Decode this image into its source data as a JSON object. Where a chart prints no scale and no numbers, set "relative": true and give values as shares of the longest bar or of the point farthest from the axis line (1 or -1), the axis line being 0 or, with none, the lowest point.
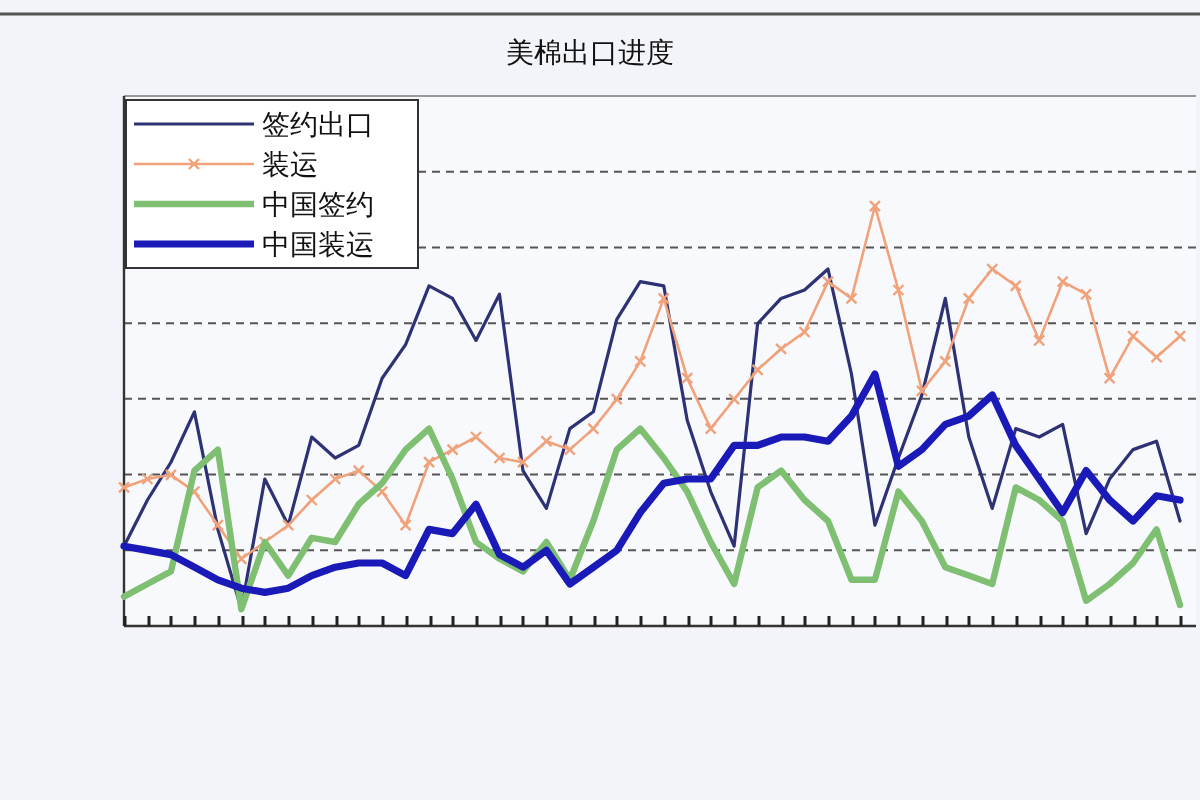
{
  "chart_data": {
    "type": "line",
    "title": "美棉出口进度",
    "relative": true,
    "grid": "y",
    "legend": "top left",
    "categories": [
      null,
      null,
      null,
      null,
      null,
      null,
      null,
      null,
      null,
      null,
      null,
      null,
      null,
      null,
      null,
      null,
      null,
      null,
      null,
      null,
      null,
      null,
      null,
      null,
      null,
      null,
      null,
      null,
      null,
      null,
      null,
      null,
      null,
      null,
      null,
      null,
      null,
      null,
      null,
      null,
      null,
      null,
      null,
      null,
      null,
      null
    ],
    "series": [
      {
        "name": "签约出口",
        "color": "#2e3275",
        "values": [
          0.19,
          0.3,
          0.39,
          0.51,
          0.23,
          0.04,
          0.35,
          0.24,
          0.45,
          0.4,
          0.43,
          0.59,
          0.67,
          0.81,
          0.78,
          0.68,
          0.79,
          0.37,
          0.28,
          0.47,
          0.51,
          0.73,
          0.82,
          0.81,
          0.49,
          0.32,
          0.19,
          0.72,
          0.78,
          0.8,
          0.85,
          0.6,
          0.24,
          0.4,
          0.55,
          0.78,
          0.45,
          0.28,
          0.47,
          0.45,
          0.48,
          0.22,
          0.35,
          0.42,
          0.44,
          0.25
        ]
      },
      {
        "name": "装运",
        "color": "#f0a27a",
        "marker": "cross",
        "values": [
          0.33,
          0.35,
          0.36,
          0.32,
          0.24,
          0.16,
          0.2,
          0.24,
          0.3,
          0.35,
          0.37,
          0.32,
          0.24,
          0.39,
          0.42,
          0.45,
          0.4,
          0.39,
          0.44,
          0.42,
          0.47,
          0.54,
          0.63,
          0.78,
          0.59,
          0.47,
          0.54,
          0.61,
          0.66,
          0.7,
          0.82,
          0.78,
          1,
          0.8,
          0.56,
          0.63,
          0.78,
          0.85,
          0.81,
          0.68,
          0.82,
          0.79,
          0.59,
          0.69,
          0.64,
          0.69
        ]
      },
      {
        "name": "中国签约",
        "color": "#7fbf72",
        "values": [
          0.07,
          0.1,
          0.13,
          0.37,
          0.42,
          0.04,
          0.2,
          0.12,
          0.21,
          0.2,
          0.29,
          0.34,
          0.42,
          0.47,
          0.35,
          0.2,
          0.16,
          0.13,
          0.2,
          0.11,
          0.25,
          0.42,
          0.47,
          0.4,
          0.32,
          0.2,
          0.1,
          0.33,
          0.37,
          0.3,
          0.25,
          0.11,
          0.11,
          0.32,
          0.25,
          0.14,
          0.12,
          0.1,
          0.33,
          0.3,
          0.25,
          0.06,
          0.1,
          0.15,
          0.23,
          0.05
        ]
      },
      {
        "name": "中国装运",
        "color": "#1a1ab8",
        "values": [
          0.19,
          0.18,
          0.17,
          0.14,
          0.11,
          0.09,
          0.08,
          0.09,
          0.12,
          0.14,
          0.15,
          0.15,
          0.12,
          0.23,
          0.22,
          0.29,
          0.17,
          0.14,
          0.18,
          0.1,
          0.14,
          0.18,
          0.27,
          0.34,
          0.35,
          0.35,
          0.43,
          0.43,
          0.45,
          0.45,
          0.44,
          0.5,
          0.6,
          0.38,
          0.42,
          0.48,
          0.5,
          0.55,
          0.43,
          0.35,
          0.27,
          0.37,
          0.3,
          0.25,
          0.31,
          0.3
        ]
      }
    ]
  }
}
